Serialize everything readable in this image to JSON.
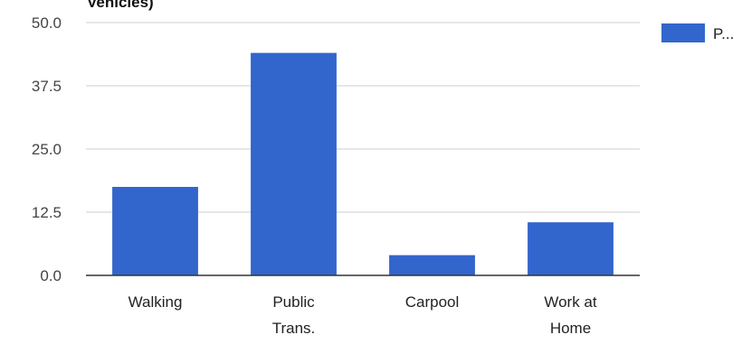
{
  "chart_data": {
    "type": "bar",
    "title": "Vehicles)",
    "categories": [
      "Walking",
      "Public Trans.",
      "Carpool",
      "Work at Home"
    ],
    "category_lines": [
      [
        "Walking"
      ],
      [
        "Public",
        "Trans."
      ],
      [
        "Carpool"
      ],
      [
        "Work at",
        "Home"
      ]
    ],
    "series": [
      {
        "name": "P...",
        "values": [
          17.5,
          44.0,
          4.0,
          10.5
        ],
        "color": "#3366cc"
      }
    ],
    "yticks": [
      "0.0",
      "12.5",
      "25.0",
      "37.5",
      "50.0"
    ],
    "ylim": [
      0,
      50
    ],
    "grid": true,
    "legend_position": "top-right",
    "colors": {
      "bar": "#3366cc",
      "grid": "#cccccc",
      "baseline": "#333333"
    }
  }
}
